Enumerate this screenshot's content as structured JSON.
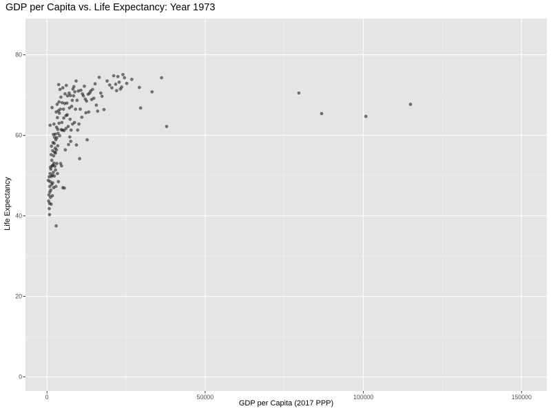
{
  "chart_data": {
    "type": "scatter",
    "title": "GDP per Capita vs. Life Expectancy: Year 1973",
    "xlabel": "GDP per Capita (2017 PPP)",
    "ylabel": "Life Expectancy",
    "xlim": [
      -6800,
      158000
    ],
    "ylim": [
      -3.5,
      89
    ],
    "x_ticks": [
      0,
      50000,
      100000,
      150000
    ],
    "x_tick_labels": [
      "0",
      "50000",
      "100000",
      "150000"
    ],
    "y_ticks": [
      0,
      20,
      40,
      60,
      80
    ],
    "y_tick_labels": [
      "0",
      "20",
      "40",
      "60",
      "80"
    ],
    "grid": true,
    "point_color": "#000000",
    "point_opacity": 0.5,
    "panel_color": "#e5e5e5",
    "points": [
      [
        400,
        48.8
      ],
      [
        500,
        43.7
      ],
      [
        600,
        45.2
      ],
      [
        700,
        41.8
      ],
      [
        700,
        49.7
      ],
      [
        800,
        40.3
      ],
      [
        800,
        43.1
      ],
      [
        900,
        45.9
      ],
      [
        900,
        47.3
      ],
      [
        1000,
        62.5
      ],
      [
        1000,
        48.5
      ],
      [
        1000,
        50.5
      ],
      [
        1100,
        52.1
      ],
      [
        1100,
        44.6
      ],
      [
        1200,
        46.4
      ],
      [
        1200,
        51.6
      ],
      [
        1300,
        55.2
      ],
      [
        1300,
        42.9
      ],
      [
        1400,
        57.3
      ],
      [
        1400,
        49.8
      ],
      [
        1500,
        53.8
      ],
      [
        1500,
        47.8
      ],
      [
        1600,
        66.9
      ],
      [
        1600,
        52.4
      ],
      [
        1700,
        50.1
      ],
      [
        1700,
        45.0
      ],
      [
        1800,
        56.2
      ],
      [
        1800,
        48.2
      ],
      [
        1900,
        58.2
      ],
      [
        1900,
        52.6
      ],
      [
        2000,
        60.2
      ],
      [
        2000,
        50.8
      ],
      [
        2100,
        54.9
      ],
      [
        2100,
        47.0
      ],
      [
        2200,
        62.8
      ],
      [
        2200,
        53.1
      ],
      [
        2300,
        58.0
      ],
      [
        2300,
        49.9
      ],
      [
        2400,
        59.5
      ],
      [
        2400,
        55.8
      ],
      [
        2500,
        52.3
      ],
      [
        2600,
        60.3
      ],
      [
        2600,
        56.8
      ],
      [
        2700,
        55.6
      ],
      [
        2700,
        51.4
      ],
      [
        2800,
        58.9
      ],
      [
        2800,
        47.3
      ],
      [
        2900,
        65.8
      ],
      [
        2900,
        37.5
      ],
      [
        3000,
        62.0
      ],
      [
        3000,
        56.4
      ],
      [
        3100,
        59.4
      ],
      [
        3100,
        53.0
      ],
      [
        3200,
        67.7
      ],
      [
        3300,
        64.4
      ],
      [
        3300,
        50.5
      ],
      [
        3400,
        61.5
      ],
      [
        3400,
        57.4
      ],
      [
        3500,
        60.5
      ],
      [
        3600,
        66.1
      ],
      [
        3600,
        48.5
      ],
      [
        3700,
        72.6
      ],
      [
        3800,
        68.3
      ],
      [
        3800,
        63.0
      ],
      [
        3900,
        65.5
      ],
      [
        4000,
        59.9
      ],
      [
        4100,
        71.4
      ],
      [
        4200,
        66.5
      ],
      [
        4300,
        53.0
      ],
      [
        4400,
        69.5
      ],
      [
        4500,
        61.4
      ],
      [
        4600,
        52.4
      ],
      [
        4700,
        63.2
      ],
      [
        4800,
        68.1
      ],
      [
        4900,
        61.3
      ],
      [
        5000,
        71.8
      ],
      [
        5000,
        47.0
      ],
      [
        5200,
        66.5
      ],
      [
        5300,
        64.3
      ],
      [
        5400,
        61.2
      ],
      [
        5500,
        46.9
      ],
      [
        5600,
        67.9
      ],
      [
        5700,
        70.3
      ],
      [
        5800,
        56.4
      ],
      [
        6000,
        64.9
      ],
      [
        6000,
        61.7
      ],
      [
        6100,
        72.4
      ],
      [
        6300,
        68.0
      ],
      [
        6400,
        65.1
      ],
      [
        6500,
        69.8
      ],
      [
        6700,
        62.2
      ],
      [
        6800,
        57.7
      ],
      [
        7000,
        70.5
      ],
      [
        7100,
        66.8
      ],
      [
        7200,
        59.6
      ],
      [
        7300,
        64.0
      ],
      [
        7400,
        69.9
      ],
      [
        7500,
        58.5
      ],
      [
        7600,
        61.3
      ],
      [
        7800,
        67.2
      ],
      [
        8000,
        68.7
      ],
      [
        8100,
        62.8
      ],
      [
        8200,
        71.5
      ],
      [
        8400,
        69.8
      ],
      [
        8500,
        72.1
      ],
      [
        8700,
        63.2
      ],
      [
        8800,
        70.8
      ],
      [
        9000,
        66.5
      ],
      [
        9200,
        73.5
      ],
      [
        9300,
        57.6
      ],
      [
        9500,
        68.7
      ],
      [
        9700,
        61.3
      ],
      [
        9900,
        71.0
      ],
      [
        10100,
        62.8
      ],
      [
        10300,
        54.2
      ],
      [
        10500,
        66.5
      ],
      [
        10700,
        71.2
      ],
      [
        11000,
        64.5
      ],
      [
        11200,
        70.3
      ],
      [
        11500,
        69.8
      ],
      [
        11800,
        72.2
      ],
      [
        12100,
        69.0
      ],
      [
        12300,
        65.6
      ],
      [
        12500,
        68.5
      ],
      [
        12700,
        58.9
      ],
      [
        13000,
        70.2
      ],
      [
        13200,
        65.8
      ],
      [
        13500,
        70.5
      ],
      [
        13800,
        71.0
      ],
      [
        14100,
        68.9
      ],
      [
        14400,
        71.4
      ],
      [
        14800,
        69.2
      ],
      [
        15200,
        72.8
      ],
      [
        15600,
        67.5
      ],
      [
        16000,
        66.0
      ],
      [
        16500,
        74.4
      ],
      [
        17000,
        70.5
      ],
      [
        17400,
        69.7
      ],
      [
        18000,
        66.4
      ],
      [
        19000,
        73.5
      ],
      [
        19800,
        72.5
      ],
      [
        20500,
        71.8
      ],
      [
        21100,
        74.8
      ],
      [
        21700,
        72.7
      ],
      [
        22000,
        71.1
      ],
      [
        22400,
        74.6
      ],
      [
        22800,
        73.2
      ],
      [
        23200,
        71.5
      ],
      [
        23600,
        72.0
      ],
      [
        24000,
        75.1
      ],
      [
        24500,
        74.3
      ],
      [
        25200,
        72.9
      ],
      [
        26800,
        73.9
      ],
      [
        29200,
        71.9
      ],
      [
        29600,
        66.8
      ],
      [
        33200,
        70.8
      ],
      [
        36200,
        74.3
      ],
      [
        37800,
        62.2
      ],
      [
        79600,
        70.5
      ],
      [
        86800,
        65.4
      ],
      [
        100800,
        64.7
      ],
      [
        114900,
        67.7
      ]
    ]
  }
}
